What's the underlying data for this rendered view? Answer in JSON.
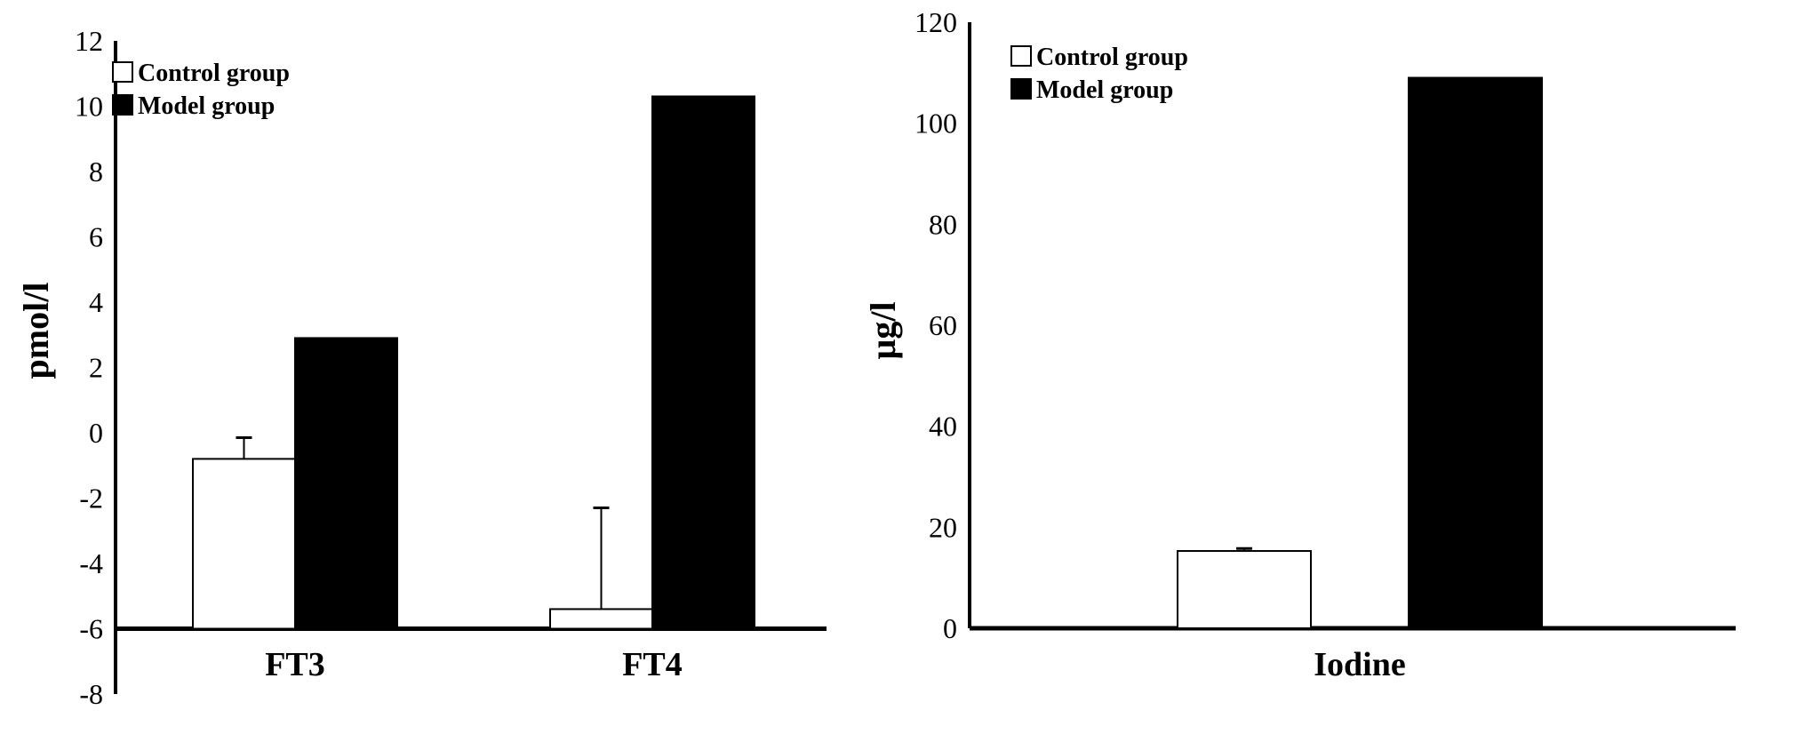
{
  "chart_data": [
    {
      "type": "bar",
      "title": "",
      "xlabel": "",
      "ylabel": "pmol/l",
      "ylim": [
        -8,
        12
      ],
      "yticks": [
        "-8",
        "-6",
        "-4",
        "-2",
        "0",
        "2",
        "4",
        "6",
        "8",
        "10",
        "12"
      ],
      "baseline": -6,
      "categories": [
        "FT3",
        "FT4"
      ],
      "legend": {
        "position": "top-left",
        "entries": [
          "Control group",
          "Model group"
        ]
      },
      "series": [
        {
          "name": "Control group",
          "color": "#ffffff",
          "values": [
            -0.8,
            -5.4
          ],
          "error_upper": [
            -0.15,
            -2.3
          ]
        },
        {
          "name": "Model group",
          "color": "#000000",
          "values": [
            2.9,
            10.3
          ],
          "error_upper": [
            null,
            null
          ]
        }
      ]
    },
    {
      "type": "bar",
      "title": "",
      "xlabel": "",
      "ylabel": "µg/l",
      "ylim": [
        0,
        120
      ],
      "yticks": [
        "0",
        "20",
        "40",
        "60",
        "80",
        "100",
        "120"
      ],
      "baseline": 0,
      "categories": [
        "Iodine"
      ],
      "legend": {
        "position": "top-left",
        "entries": [
          "Control group",
          "Model group"
        ]
      },
      "series": [
        {
          "name": "Control group",
          "color": "#ffffff",
          "values": [
            15.3
          ],
          "error_upper": [
            15.8
          ]
        },
        {
          "name": "Model group",
          "color": "#000000",
          "values": [
            109
          ],
          "error_upper": [
            null
          ]
        }
      ]
    }
  ]
}
